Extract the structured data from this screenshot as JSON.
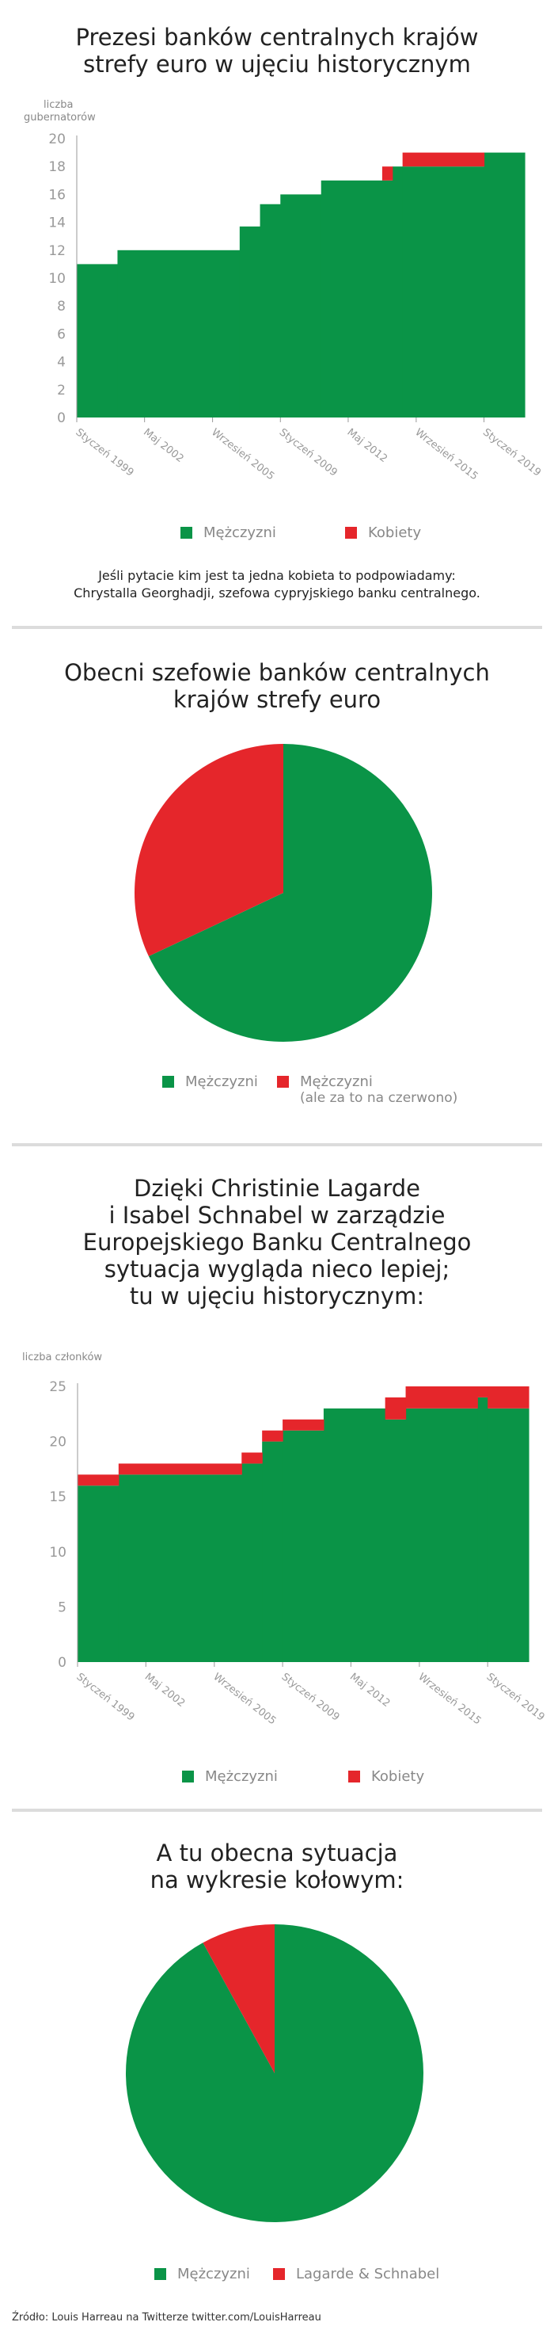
{
  "colors": {
    "green": "#0a9447",
    "red": "#e5262b",
    "axis": "#999999",
    "separator": "#dcdcdc"
  },
  "sections": {
    "s1": {
      "title_lines": [
        "Prezesi banków centralnych krajów",
        "strefy euro w ujęciu historycznym"
      ],
      "ylabel_lines": [
        "liczba",
        "gubernatorów"
      ],
      "legend": [
        {
          "label": "Mężczyzni",
          "color": "#0a9447"
        },
        {
          "label": "Kobiety",
          "color": "#e5262b"
        }
      ],
      "note_lines": [
        "Jeśli pytacie kim jest ta jedna kobieta to podpowiadamy:",
        "Chrystalla Georghadji, szefowa cypryjskiego banku centralnego."
      ]
    },
    "s2": {
      "title_lines": [
        "Obecni szefowie banków centralnych",
        "krajów strefy euro"
      ],
      "legend": [
        {
          "label": "Mężczyzni",
          "color": "#0a9447"
        },
        {
          "label": "Mężczyzni",
          "sub": "(ale za to na czerwono)",
          "color": "#e5262b"
        }
      ]
    },
    "s3": {
      "title_lines": [
        "Dzięki Christinie Lagarde",
        "i Isabel Schnabel w zarządzie",
        "Europejskiego Banku Centralnego",
        "sytuacja wygląda nieco lepiej;",
        "tu w ujęciu historycznym:"
      ],
      "ylabel_lines": [
        "liczba członków"
      ],
      "legend": [
        {
          "label": "Mężczyzni",
          "color": "#0a9447"
        },
        {
          "label": "Kobiety",
          "color": "#e5262b"
        }
      ]
    },
    "s4": {
      "title_lines": [
        "A tu obecna sytuacja",
        "na wykresie kołowym:"
      ],
      "legend": [
        {
          "label": "Mężczyzni",
          "color": "#0a9447"
        },
        {
          "label": "Lagarde & Schnabel",
          "color": "#e5262b"
        }
      ]
    }
  },
  "source": "Źródło: Louis Harreau na Twitterze twitter.com/LouisHarreau",
  "chart_data": [
    {
      "type": "area",
      "stacked": true,
      "title": "Prezesi banków centralnych krajów strefy euro w ujęciu historycznym",
      "ylabel": "liczba gubernatorów",
      "xlim": [
        1999.0,
        2021.0
      ],
      "ylim": [
        0,
        20
      ],
      "yticks": [
        0,
        2,
        4,
        6,
        8,
        10,
        12,
        14,
        16,
        18,
        20
      ],
      "xticks": [
        {
          "x": 1999.0,
          "label": "Styczeń 1999"
        },
        {
          "x": 2002.33,
          "label": "Maj 2002"
        },
        {
          "x": 2005.67,
          "label": "Wrzesień 2005"
        },
        {
          "x": 2009.0,
          "label": "Styczeń 2009"
        },
        {
          "x": 2012.33,
          "label": "Maj 2012"
        },
        {
          "x": 2015.67,
          "label": "Wrzesień 2015"
        },
        {
          "x": 2019.0,
          "label": "Styczeń 2019"
        }
      ],
      "grid": false,
      "legend_position": "bottom",
      "step_edges": [
        1999.0,
        2001.0,
        2007.0,
        2008.0,
        2009.0,
        2011.0,
        2014.0,
        2014.5,
        2015.0,
        2019.0,
        2021.0
      ],
      "series": [
        {
          "name": "Mężczyzni",
          "color": "#0a9447",
          "values": [
            11,
            12,
            13.7,
            15.3,
            16,
            17,
            17,
            18,
            18,
            19
          ]
        },
        {
          "name": "Kobiety",
          "color": "#e5262b",
          "values": [
            0,
            0,
            0,
            0,
            0,
            0,
            1,
            0,
            1,
            0
          ]
        }
      ]
    },
    {
      "type": "pie",
      "title": "Obecni szefowie banków centralnych krajów strefy euro",
      "slices": [
        {
          "label": "Mężczyzni",
          "value": 68,
          "color": "#0a9447"
        },
        {
          "label": "Mężczyzni (ale za to na czerwono)",
          "value": 32,
          "color": "#e5262b"
        }
      ],
      "legend_position": "bottom"
    },
    {
      "type": "area",
      "stacked": true,
      "title": "Dzięki Christinie Lagarde i Isabel Schnabel w zarządzie Europejskiego Banku Centralnego sytuacja wygląda nieco lepiej; tu w ujęciu historycznym:",
      "ylabel": "liczba członków",
      "xlim": [
        1999.0,
        2021.0
      ],
      "ylim": [
        0,
        25
      ],
      "yticks": [
        0,
        5,
        10,
        15,
        20,
        25
      ],
      "xticks": [
        {
          "x": 1999.0,
          "label": "Styczeń 1999"
        },
        {
          "x": 2002.33,
          "label": "Maj 2002"
        },
        {
          "x": 2005.67,
          "label": "Wrzesień 2005"
        },
        {
          "x": 2009.0,
          "label": "Styczeń 2009"
        },
        {
          "x": 2012.33,
          "label": "Maj 2012"
        },
        {
          "x": 2015.67,
          "label": "Wrzesień 2015"
        },
        {
          "x": 2019.0,
          "label": "Styczeń 2019"
        }
      ],
      "grid": false,
      "legend_position": "bottom",
      "step_edges": [
        1999.0,
        2001.0,
        2007.0,
        2008.0,
        2009.0,
        2011.0,
        2014.0,
        2015.0,
        2018.5,
        2019.0,
        2021.0
      ],
      "series": [
        {
          "name": "Mężczyzni",
          "color": "#0a9447",
          "values": [
            16,
            17,
            18,
            20,
            21,
            23,
            22,
            23,
            24,
            23
          ]
        },
        {
          "name": "Kobiety",
          "color": "#e5262b",
          "values": [
            1,
            1,
            1,
            1,
            1,
            0,
            2,
            2,
            1,
            2
          ]
        }
      ]
    },
    {
      "type": "pie",
      "title": "A tu obecna sytuacja na wykresie kołowym:",
      "slices": [
        {
          "label": "Mężczyzni",
          "value": 23,
          "color": "#0a9447"
        },
        {
          "label": "Lagarde & Schnabel",
          "value": 2,
          "color": "#e5262b"
        }
      ],
      "legend_position": "bottom"
    }
  ]
}
